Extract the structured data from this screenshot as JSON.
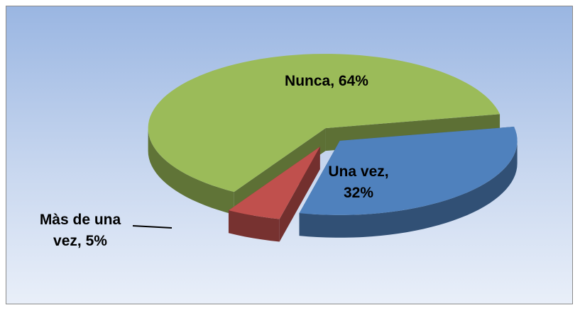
{
  "chart_data": {
    "type": "pie3d",
    "categories": [
      "Nunca",
      "Una vez",
      "Màs de una vez"
    ],
    "values": [
      64,
      32,
      5
    ],
    "value_labels": [
      "Nunca, 64%",
      "Una vez, 32%",
      "Màs de una vez, 5%"
    ],
    "colors": [
      "#9bbb59",
      "#4f81bd",
      "#c0504d"
    ]
  }
}
